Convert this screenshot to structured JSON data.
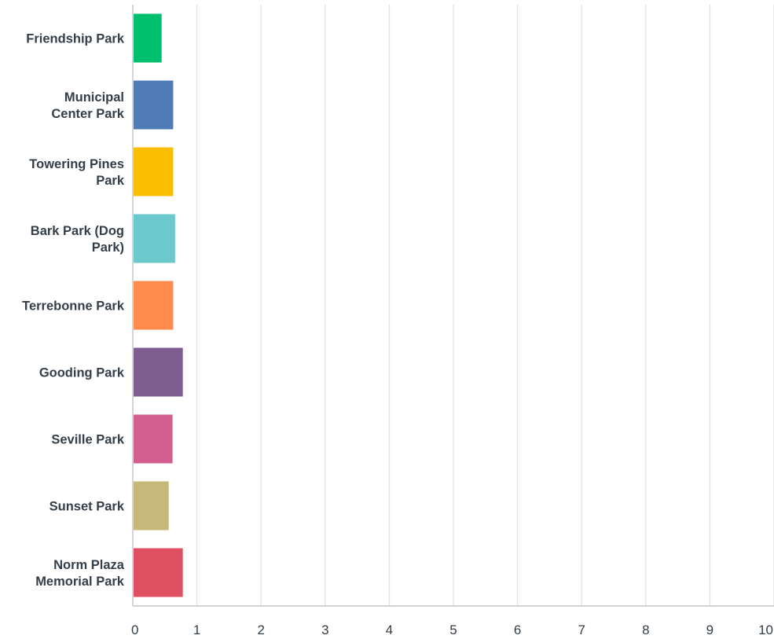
{
  "chart_data": {
    "type": "bar",
    "orientation": "horizontal",
    "categories": [
      [
        "Friendship Park"
      ],
      [
        "Municipal",
        "Center Park"
      ],
      [
        "Towering Pines",
        "Park"
      ],
      [
        "Bark Park (Dog",
        "Park)"
      ],
      [
        "Terrebonne Park"
      ],
      [
        "Gooding Park"
      ],
      [
        "Seville Park"
      ],
      [
        "Sunset Park"
      ],
      [
        "Norm Plaza",
        "Memorial Park"
      ]
    ],
    "values": [
      0.45,
      0.63,
      0.63,
      0.66,
      0.63,
      0.78,
      0.62,
      0.56,
      0.78
    ],
    "colors": [
      "#00bf6f",
      "#507cb6",
      "#f9be00",
      "#6bc8cd",
      "#ff8b4f",
      "#7f5d90",
      "#d25f90",
      "#c7b879",
      "#dd4f61"
    ],
    "xlim": [
      0,
      10
    ],
    "xticks": [
      "0",
      "1",
      "2",
      "3",
      "4",
      "5",
      "6",
      "7",
      "8",
      "9",
      "10"
    ],
    "grid": true,
    "title": "",
    "xlabel": "",
    "ylabel": ""
  }
}
